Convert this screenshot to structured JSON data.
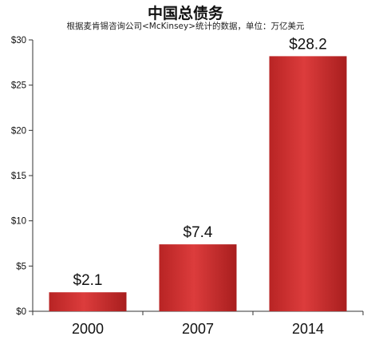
{
  "chart_data": {
    "type": "bar",
    "title": "中国总债务",
    "subtitle": "根据麦肯锡咨询公司<McKinsey>统计的数据，单位：万亿美元",
    "categories": [
      "2000",
      "2007",
      "2014"
    ],
    "values": [
      2.1,
      7.4,
      28.2
    ],
    "value_labels": [
      "$2.1",
      "$7.4",
      "$28.2"
    ],
    "ylim": [
      0,
      30
    ],
    "yticks": [
      0,
      5,
      10,
      15,
      20,
      25,
      30
    ],
    "ytick_labels": [
      "$0",
      "$5",
      "$10",
      "$15",
      "$20",
      "$25",
      "$30"
    ],
    "xlabel": "",
    "ylabel": "",
    "grid": false,
    "legend": "none",
    "bar_color": "#d43434"
  }
}
